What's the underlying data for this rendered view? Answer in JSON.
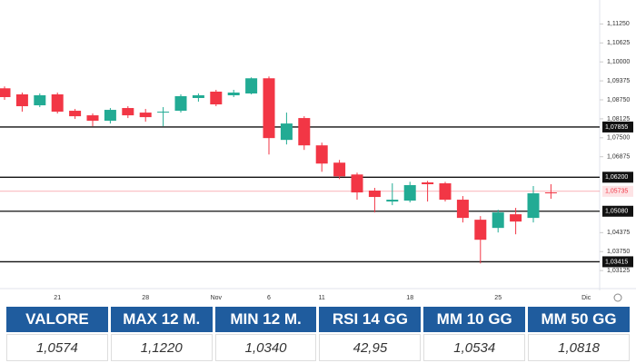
{
  "chart_data": {
    "type": "candlestick",
    "categories": [
      null,
      null,
      null,
      "21",
      null,
      null,
      null,
      null,
      "28",
      null,
      null,
      null,
      "Nov",
      null,
      null,
      "6",
      null,
      null,
      "11",
      null,
      null,
      null,
      null,
      "18",
      null,
      null,
      null,
      null,
      "25",
      null,
      null,
      null,
      null,
      "Dic"
    ],
    "open": [
      1.0913,
      1.0893,
      1.0857,
      1.0893,
      1.0839,
      1.0824,
      1.0806,
      1.0848,
      1.0833,
      1.0833,
      1.0839,
      1.0881,
      1.0902,
      1.089,
      1.0896,
      1.0946,
      1.0743,
      1.0815,
      1.0725,
      1.0668,
      1.0629,
      1.0576,
      1.054,
      1.0543,
      1.0603,
      1.06,
      1.0546,
      1.048,
      1.0453,
      1.0498,
      1.0486,
      1.057,
      null,
      null
    ],
    "high": [
      1.0919,
      1.0899,
      1.0896,
      1.0899,
      1.0845,
      1.083,
      1.0848,
      1.0854,
      1.0845,
      1.0851,
      1.0893,
      1.0896,
      1.0908,
      1.0908,
      1.0949,
      1.0952,
      1.0833,
      1.0821,
      1.0734,
      1.0677,
      1.0635,
      1.0585,
      1.06,
      1.0605,
      1.0608,
      1.0605,
      1.0558,
      1.0492,
      1.0513,
      1.0519,
      1.0591,
      1.0597,
      null,
      null
    ],
    "low": [
      1.0875,
      1.0836,
      1.0851,
      1.083,
      1.0812,
      1.0788,
      1.0797,
      1.0815,
      1.0803,
      1.0788,
      1.0833,
      1.0869,
      1.0854,
      1.0884,
      1.0893,
      1.0695,
      1.0728,
      1.071,
      1.0638,
      1.0614,
      1.0546,
      1.0504,
      1.0528,
      1.0537,
      1.054,
      1.054,
      1.0471,
      1.0336,
      1.0438,
      1.0432,
      1.0471,
      1.0549,
      null,
      null
    ],
    "close": [
      1.0884,
      1.0854,
      1.089,
      1.0836,
      1.0821,
      1.0806,
      1.0842,
      1.0824,
      1.0818,
      1.0836,
      1.0887,
      1.089,
      1.086,
      1.0899,
      1.0946,
      1.0749,
      1.0797,
      1.0725,
      1.0665,
      1.0623,
      1.057,
      1.0555,
      1.0546,
      1.0594,
      1.0597,
      1.0546,
      1.0486,
      1.0414,
      1.0504,
      1.0474,
      1.0567,
      1.0567,
      null,
      null
    ],
    "up_color": "#22ab94",
    "down_color": "#f23645",
    "ylim": [
      1.0292,
      1.118
    ],
    "yticks": [
      {
        "value": 1.1125,
        "label": "1,11250"
      },
      {
        "value": 1.10625,
        "label": "1,10625"
      },
      {
        "value": 1.1,
        "label": "1,10000"
      },
      {
        "value": 1.09375,
        "label": "1,09375"
      },
      {
        "value": 1.0875,
        "label": "1,08750"
      },
      {
        "value": 1.08125,
        "label": "1,08125"
      },
      {
        "value": 1.075,
        "label": "1,07500"
      },
      {
        "value": 1.06875,
        "label": "1,06875"
      },
      {
        "value": 1.04375,
        "label": "1,04375"
      },
      {
        "value": 1.0375,
        "label": "1,03750"
      },
      {
        "value": 1.03125,
        "label": "1,03125"
      }
    ],
    "grid": false,
    "price_lines": [
      {
        "value": 1.07855,
        "label": "1,07855"
      },
      {
        "value": 1.062,
        "label": "1,06200"
      },
      {
        "value": 1.0508,
        "label": "1,05080"
      },
      {
        "value": 1.03415,
        "label": "1,03415"
      }
    ],
    "last_price": {
      "value": 1.05735,
      "label": "1,05735"
    }
  },
  "table": {
    "headers": [
      "VALORE",
      "MAX 12 M.",
      "MIN 12 M.",
      "RSI 14 GG",
      "MM 10 GG",
      "MM 50 GG"
    ],
    "rows": [
      [
        "1,0574",
        "1,1220",
        "1,0340",
        "42,95",
        "1,0534",
        "1,0818"
      ]
    ]
  }
}
